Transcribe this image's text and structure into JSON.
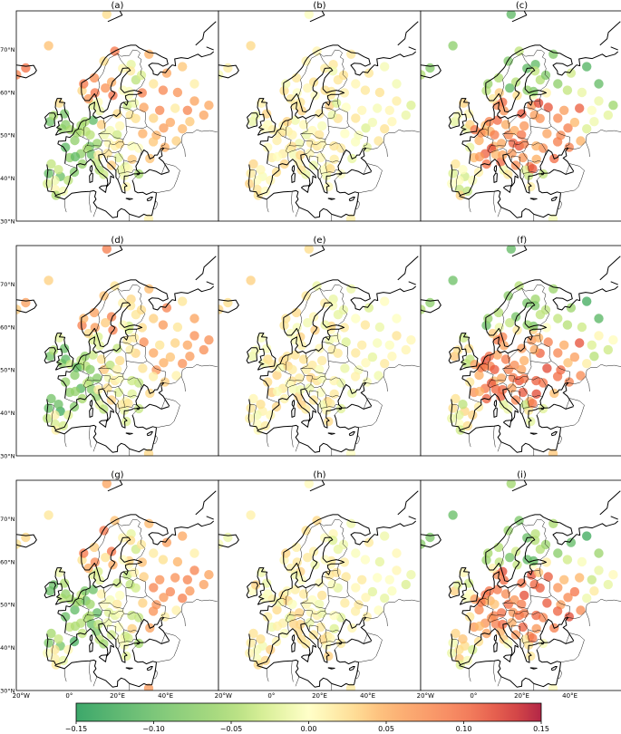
{
  "chart_data": {
    "type": "scatter",
    "description_kind": "map-panels",
    "panels": [
      {
        "label": "(a)",
        "pattern": "a"
      },
      {
        "label": "(b)",
        "pattern": "b"
      },
      {
        "label": "(c)",
        "pattern": "c"
      },
      {
        "label": "(d)",
        "pattern": "a"
      },
      {
        "label": "(e)",
        "pattern": "b"
      },
      {
        "label": "(f)",
        "pattern": "c"
      },
      {
        "label": "(g)",
        "pattern": "a"
      },
      {
        "label": "(h)",
        "pattern": "b"
      },
      {
        "label": "(i)",
        "pattern": "c"
      }
    ],
    "lat_ticks": [
      "70°N",
      "60°N",
      "50°N",
      "40°N",
      "30°N"
    ],
    "lat_values": [
      70,
      60,
      50,
      40,
      30
    ],
    "lon_ticks": [
      "20°W",
      "0°",
      "20°E",
      "40°E"
    ],
    "lon_values": [
      -20,
      0,
      20,
      40
    ],
    "lon_range": [
      -22,
      62
    ],
    "lat_range": [
      30,
      79
    ],
    "colorbar": {
      "ticks": [
        "−0.15",
        "−0.10",
        "−0.05",
        "0.00",
        "0.05",
        "0.10",
        "0.15"
      ],
      "tick_values": [
        -0.15,
        -0.1,
        -0.05,
        0.0,
        0.05,
        0.1,
        0.15
      ],
      "range": [
        -0.15,
        0.15
      ],
      "colormap": "RdYlGn_r"
    },
    "stations": [
      [
        -8.0,
        53.2
      ],
      [
        -6.5,
        54.6
      ],
      [
        -3.0,
        51.5
      ],
      [
        -1.5,
        52.5
      ],
      [
        -2.0,
        55.0
      ],
      [
        -4.2,
        57.5
      ],
      [
        0.5,
        51.3
      ],
      [
        2.3,
        48.8
      ],
      [
        4.8,
        45.7
      ],
      [
        0.2,
        44.8
      ],
      [
        -1.6,
        47.2
      ],
      [
        5.4,
        43.3
      ],
      [
        2.1,
        41.4
      ],
      [
        -3.7,
        40.4
      ],
      [
        -5.9,
        37.4
      ],
      [
        -8.6,
        41.1
      ],
      [
        -9.1,
        38.7
      ],
      [
        -0.4,
        39.5
      ],
      [
        4.4,
        50.8
      ],
      [
        4.9,
        52.3
      ],
      [
        6.9,
        50.9
      ],
      [
        8.7,
        50.1
      ],
      [
        9.9,
        53.5
      ],
      [
        11.6,
        48.1
      ],
      [
        13.4,
        52.5
      ],
      [
        8.5,
        47.4
      ],
      [
        7.4,
        46.9
      ],
      [
        9.2,
        45.5
      ],
      [
        11.3,
        43.8
      ],
      [
        12.5,
        41.9
      ],
      [
        14.3,
        40.9
      ],
      [
        16.4,
        48.2
      ],
      [
        14.5,
        50.1
      ],
      [
        17.0,
        51.1
      ],
      [
        21.0,
        52.2
      ],
      [
        19.9,
        50.1
      ],
      [
        19.0,
        47.5
      ],
      [
        26.1,
        44.4
      ],
      [
        23.3,
        42.7
      ],
      [
        20.5,
        44.8
      ],
      [
        15.9,
        45.8
      ],
      [
        23.7,
        38.0
      ],
      [
        22.9,
        40.6
      ],
      [
        28.9,
        41.0
      ],
      [
        30.5,
        50.4
      ],
      [
        27.6,
        53.9
      ],
      [
        25.3,
        54.7
      ],
      [
        24.1,
        56.9
      ],
      [
        24.7,
        59.4
      ],
      [
        30.3,
        59.9
      ],
      [
        37.6,
        55.8
      ],
      [
        36.2,
        50.0
      ],
      [
        34.9,
        48.5
      ],
      [
        39.7,
        47.2
      ],
      [
        44.0,
        56.3
      ],
      [
        49.1,
        55.8
      ],
      [
        44.5,
        48.7
      ],
      [
        50.1,
        53.2
      ],
      [
        55.9,
        54.7
      ],
      [
        40.5,
        64.5
      ],
      [
        33.1,
        68.9
      ],
      [
        25.7,
        66.5
      ],
      [
        18.9,
        69.6
      ],
      [
        10.7,
        59.9
      ],
      [
        5.3,
        60.4
      ],
      [
        10.4,
        63.4
      ],
      [
        14.4,
        67.3
      ],
      [
        18.1,
        59.3
      ],
      [
        12.0,
        57.7
      ],
      [
        17.6,
        62.4
      ],
      [
        22.2,
        65.6
      ],
      [
        24.9,
        60.2
      ],
      [
        22.3,
        60.5
      ],
      [
        27.7,
        62.9
      ],
      [
        25.5,
        65.0
      ],
      [
        12.6,
        55.7
      ],
      [
        9.9,
        57.0
      ],
      [
        -21.9,
        64.1
      ],
      [
        -18.1,
        65.7
      ],
      [
        -8.6,
        70.9
      ],
      [
        15.6,
        78.2
      ],
      [
        28.9,
        47.0
      ],
      [
        33.5,
        44.6
      ],
      [
        39.2,
        51.7
      ],
      [
        45.0,
        60.0
      ],
      [
        52.0,
        58.0
      ],
      [
        31.0,
        56.5
      ],
      [
        35.0,
        62.0
      ],
      [
        47.0,
        51.5
      ],
      [
        42.0,
        53.0
      ],
      [
        -5.5,
        36.0
      ],
      [
        33.0,
        30.5
      ],
      [
        6.0,
        62.0
      ],
      [
        8.0,
        58.5
      ],
      [
        15.0,
        61.0
      ],
      [
        20.0,
        55.0
      ],
      [
        27.0,
        57.5
      ],
      [
        21.0,
        48.0
      ],
      [
        26.0,
        47.5
      ],
      [
        35.0,
        54.0
      ],
      [
        58.0,
        57.0
      ],
      [
        52.0,
        62.0
      ],
      [
        47.0,
        66.0
      ],
      [
        39.0,
        60.5
      ],
      [
        30.0,
        64.0
      ],
      [
        -7.5,
        43.3
      ],
      [
        3.1,
        50.6
      ],
      [
        6.5,
        53.2
      ],
      [
        2.5,
        45.0
      ],
      [
        12.0,
        45.4
      ],
      [
        17.5,
        43.0
      ],
      [
        21.5,
        41.9
      ],
      [
        24.5,
        42.2
      ],
      [
        -2.5,
        37.0
      ],
      [
        -6.0,
        39.5
      ],
      [
        -4.5,
        42.0
      ]
    ]
  }
}
